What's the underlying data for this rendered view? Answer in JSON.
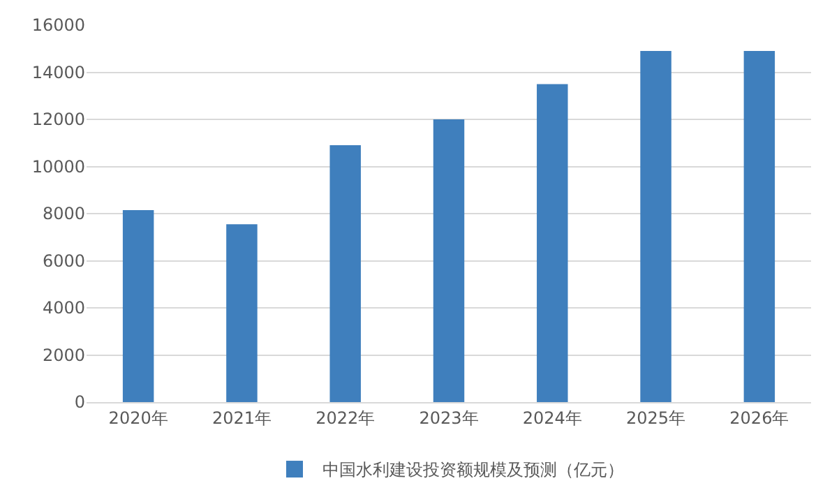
{
  "chart_data": {
    "type": "bar",
    "categories": [
      "2020年",
      "2021年",
      "2022年",
      "2023年",
      "2024年",
      "2025年",
      "2026年"
    ],
    "series": [
      {
        "name": "中国水利建设投资额规模及预测（亿元）",
        "color": "#3f7fbd",
        "values": [
          8150,
          7550,
          10900,
          12000,
          13500,
          14900,
          14900
        ]
      }
    ],
    "ylim": [
      0,
      16000
    ],
    "yticks": [
      0,
      2000,
      4000,
      6000,
      8000,
      10000,
      12000,
      14000,
      16000
    ],
    "grid": "y",
    "legend": "bottom"
  }
}
